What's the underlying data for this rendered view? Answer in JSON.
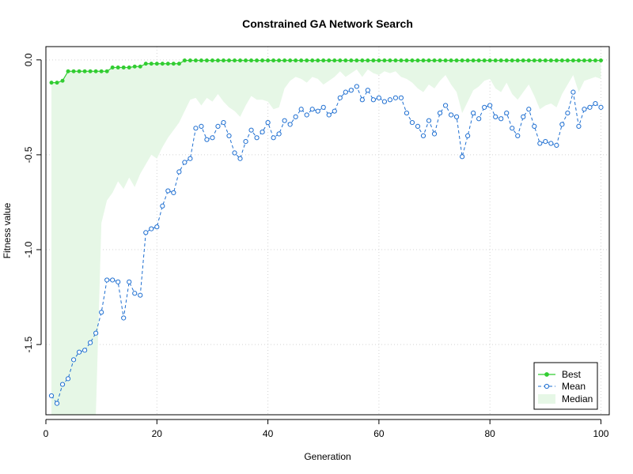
{
  "chart_data": {
    "type": "line",
    "title": "Constrained GA Network Search",
    "xlabel": "Generation",
    "ylabel": "Fitness value",
    "xlim": [
      0,
      101.5
    ],
    "ylim": [
      -1.87,
      0.07
    ],
    "x_ticks": [
      0,
      20,
      40,
      60,
      80,
      100
    ],
    "x_tick_labels": [
      "0",
      "20",
      "40",
      "60",
      "80",
      "100"
    ],
    "y_ticks": [
      0,
      -0.5,
      -1.0,
      -1.5
    ],
    "y_tick_labels": [
      "0.0",
      "-0.5",
      "-1.0",
      "-1.5"
    ],
    "grid": true,
    "legend_position": "bottom-right",
    "x": [
      1,
      2,
      3,
      4,
      5,
      6,
      7,
      8,
      9,
      10,
      11,
      12,
      13,
      14,
      15,
      16,
      17,
      18,
      19,
      20,
      21,
      22,
      23,
      24,
      25,
      26,
      27,
      28,
      29,
      30,
      31,
      32,
      33,
      34,
      35,
      36,
      37,
      38,
      39,
      40,
      41,
      42,
      43,
      44,
      45,
      46,
      47,
      48,
      49,
      50,
      51,
      52,
      53,
      54,
      55,
      56,
      57,
      58,
      59,
      60,
      61,
      62,
      63,
      64,
      65,
      66,
      67,
      68,
      69,
      70,
      71,
      72,
      73,
      74,
      75,
      76,
      77,
      78,
      79,
      80,
      81,
      82,
      83,
      84,
      85,
      86,
      87,
      88,
      89,
      90,
      91,
      92,
      93,
      94,
      95,
      96,
      97,
      98,
      99,
      100
    ],
    "series": [
      {
        "name": "Best",
        "color": "#32cd32",
        "style": "solid-filled-dots",
        "values": [
          -0.12,
          -0.12,
          -0.11,
          -0.06,
          -0.06,
          -0.06,
          -0.06,
          -0.06,
          -0.06,
          -0.06,
          -0.06,
          -0.04,
          -0.04,
          -0.04,
          -0.04,
          -0.035,
          -0.035,
          -0.02,
          -0.02,
          -0.02,
          -0.02,
          -0.02,
          -0.02,
          -0.02,
          -0.003,
          -0.003,
          -0.003,
          -0.003,
          -0.003,
          -0.003,
          -0.003,
          -0.003,
          -0.003,
          -0.003,
          -0.003,
          -0.003,
          -0.003,
          -0.003,
          -0.003,
          -0.003,
          -0.003,
          -0.003,
          -0.003,
          -0.003,
          -0.003,
          -0.003,
          -0.003,
          -0.003,
          -0.003,
          -0.003,
          -0.003,
          -0.003,
          -0.003,
          -0.003,
          -0.003,
          -0.003,
          -0.003,
          -0.003,
          -0.003,
          -0.003,
          -0.003,
          -0.003,
          -0.003,
          -0.003,
          -0.003,
          -0.003,
          -0.003,
          -0.003,
          -0.003,
          -0.003,
          -0.003,
          -0.003,
          -0.003,
          -0.003,
          -0.003,
          -0.003,
          -0.003,
          -0.003,
          -0.003,
          -0.003,
          -0.003,
          -0.003,
          -0.003,
          -0.003,
          -0.003,
          -0.003,
          -0.003,
          -0.003,
          -0.003,
          -0.003,
          -0.003,
          -0.003,
          -0.003,
          -0.003,
          -0.003,
          -0.003,
          -0.003,
          -0.003,
          -0.003,
          -0.003
        ]
      },
      {
        "name": "Mean",
        "color": "#1f6fd1",
        "style": "dashed-open-circles",
        "values": [
          -1.77,
          -1.81,
          -1.71,
          -1.68,
          -1.58,
          -1.54,
          -1.53,
          -1.49,
          -1.44,
          -1.33,
          -1.16,
          -1.16,
          -1.17,
          -1.36,
          -1.17,
          -1.23,
          -1.24,
          -0.91,
          -0.89,
          -0.88,
          -0.77,
          -0.69,
          -0.7,
          -0.59,
          -0.54,
          -0.52,
          -0.36,
          -0.35,
          -0.42,
          -0.41,
          -0.35,
          -0.33,
          -0.4,
          -0.49,
          -0.52,
          -0.43,
          -0.37,
          -0.41,
          -0.38,
          -0.33,
          -0.41,
          -0.39,
          -0.32,
          -0.34,
          -0.3,
          -0.26,
          -0.29,
          -0.26,
          -0.27,
          -0.25,
          -0.29,
          -0.27,
          -0.2,
          -0.17,
          -0.16,
          -0.14,
          -0.21,
          -0.16,
          -0.21,
          -0.2,
          -0.22,
          -0.21,
          -0.2,
          -0.2,
          -0.28,
          -0.33,
          -0.35,
          -0.4,
          -0.32,
          -0.39,
          -0.28,
          -0.24,
          -0.29,
          -0.3,
          -0.51,
          -0.4,
          -0.28,
          -0.31,
          -0.25,
          -0.24,
          -0.3,
          -0.31,
          -0.28,
          -0.36,
          -0.4,
          -0.3,
          -0.26,
          -0.35,
          -0.44,
          -0.43,
          -0.44,
          -0.45,
          -0.34,
          -0.28,
          -0.17,
          -0.35,
          -0.26,
          -0.25,
          -0.23,
          -0.25
        ]
      },
      {
        "name": "Median",
        "color": "#e6f7e6",
        "style": "filled-band",
        "values": [
          -1.87,
          -1.87,
          -1.87,
          -1.87,
          -1.87,
          -1.87,
          -1.87,
          -1.87,
          -1.87,
          -0.86,
          -0.74,
          -0.7,
          -0.64,
          -0.68,
          -0.62,
          -0.67,
          -0.6,
          -0.55,
          -0.5,
          -0.52,
          -0.46,
          -0.41,
          -0.37,
          -0.33,
          -0.27,
          -0.21,
          -0.2,
          -0.24,
          -0.2,
          -0.22,
          -0.18,
          -0.22,
          -0.25,
          -0.27,
          -0.3,
          -0.24,
          -0.19,
          -0.21,
          -0.21,
          -0.22,
          -0.26,
          -0.25,
          -0.15,
          -0.11,
          -0.09,
          -0.1,
          -0.12,
          -0.09,
          -0.1,
          -0.13,
          -0.11,
          -0.09,
          -0.06,
          -0.09,
          -0.07,
          -0.05,
          -0.09,
          -0.05,
          -0.07,
          -0.08,
          -0.06,
          -0.07,
          -0.06,
          -0.09,
          -0.1,
          -0.12,
          -0.15,
          -0.17,
          -0.13,
          -0.15,
          -0.11,
          -0.08,
          -0.13,
          -0.17,
          -0.28,
          -0.22,
          -0.16,
          -0.14,
          -0.11,
          -0.1,
          -0.15,
          -0.17,
          -0.12,
          -0.18,
          -0.21,
          -0.17,
          -0.13,
          -0.19,
          -0.26,
          -0.24,
          -0.23,
          -0.25,
          -0.18,
          -0.13,
          -0.08,
          -0.17,
          -0.11,
          -0.1,
          -0.09,
          -0.1
        ]
      }
    ]
  }
}
